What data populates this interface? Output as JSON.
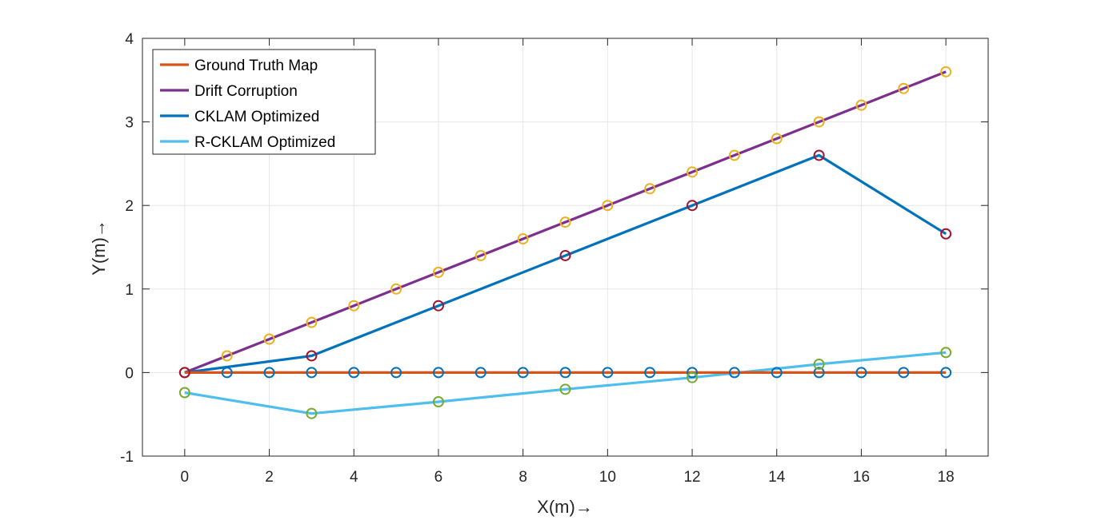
{
  "chart_data": {
    "type": "line",
    "title": "",
    "xlabel": "X(m)→",
    "ylabel": "Y(m)→",
    "xlim": [
      -1,
      19
    ],
    "ylim": [
      -1,
      4
    ],
    "xticks": [
      0,
      2,
      4,
      6,
      8,
      10,
      12,
      14,
      16,
      18
    ],
    "yticks": [
      -1,
      0,
      1,
      2,
      3,
      4
    ],
    "grid": true,
    "legend_position": "top-left",
    "series": [
      {
        "name": "Ground Truth Map",
        "color": "#D95319",
        "marker_color": "#0072BD",
        "x": [
          0,
          1,
          2,
          3,
          4,
          5,
          6,
          7,
          8,
          9,
          10,
          11,
          12,
          13,
          14,
          15,
          16,
          17,
          18
        ],
        "y": [
          0,
          0,
          0,
          0,
          0,
          0,
          0,
          0,
          0,
          0,
          0,
          0,
          0,
          0,
          0,
          0,
          0,
          0,
          0
        ]
      },
      {
        "name": "Drift Corruption",
        "color": "#7E2F8E",
        "marker_color": "#EDB120",
        "x": [
          0,
          1,
          2,
          3,
          4,
          5,
          6,
          7,
          8,
          9,
          10,
          11,
          12,
          13,
          14,
          15,
          16,
          17,
          18
        ],
        "y": [
          0,
          0.2,
          0.4,
          0.6,
          0.8,
          1.0,
          1.2,
          1.4,
          1.6,
          1.8,
          2.0,
          2.2,
          2.4,
          2.6,
          2.8,
          3.0,
          3.2,
          3.4,
          3.6
        ]
      },
      {
        "name": "CKLAM Optimized",
        "color": "#0072BD",
        "marker_color": "#A2142F",
        "x": [
          0,
          3,
          6,
          9,
          12,
          15,
          18
        ],
        "y": [
          0,
          0.2,
          0.8,
          1.4,
          2.0,
          2.6,
          1.66
        ]
      },
      {
        "name": "R-CKLAM Optimized",
        "color": "#4DBEEE",
        "marker_color": "#77AC30",
        "x": [
          0,
          3,
          6,
          9,
          12,
          15,
          18
        ],
        "y": [
          -0.24,
          -0.49,
          -0.35,
          -0.2,
          -0.06,
          0.1,
          0.24
        ]
      }
    ]
  }
}
